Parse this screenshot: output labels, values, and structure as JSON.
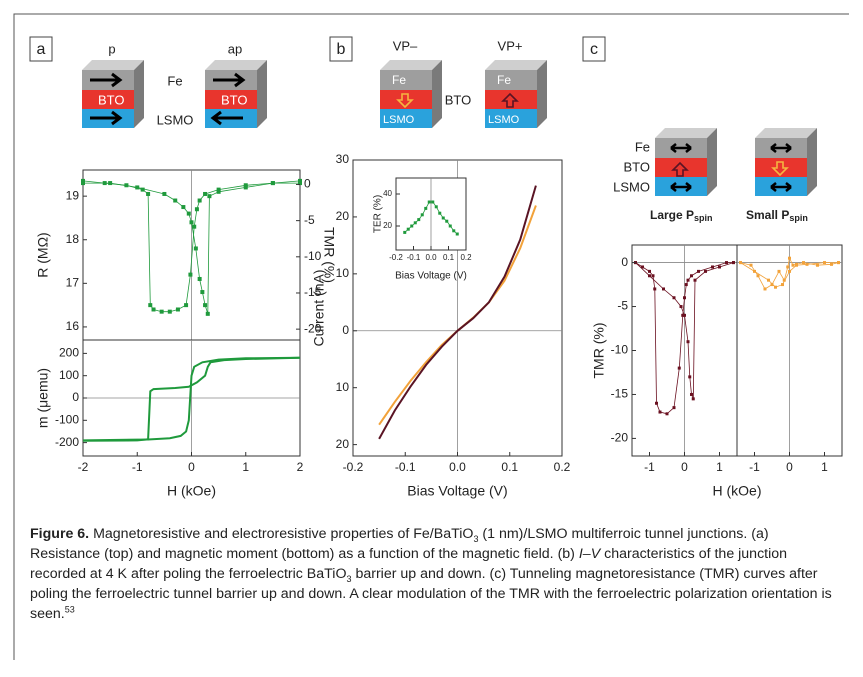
{
  "panels": [
    "a",
    "b",
    "c"
  ],
  "diagrams": {
    "a": {
      "left": "p",
      "right": "ap",
      "fe": "Fe",
      "bto_left": "BTO",
      "bto_right": "BTO",
      "lsmo": "LSMO"
    },
    "b": {
      "left": "VP–",
      "right": "VP+",
      "fe_left": "Fe",
      "fe_right": "Fe",
      "bto": "BTO",
      "lsmo_left": "LSMO",
      "lsmo_right": "LSMO"
    },
    "c": {
      "fe": "Fe",
      "bto": "BTO",
      "lsmo": "LSMO",
      "large": "Large P",
      "large_sub": "spin",
      "small": "Small P",
      "small_sub": "spin"
    }
  },
  "chart_data": [
    {
      "type": "scatter",
      "y_label": "R (MΩ)",
      "y2_label": "TMR (%)",
      "xlim": [
        -2,
        2
      ],
      "ylim": [
        15.7,
        19.6
      ],
      "yticks": [
        16,
        17,
        18,
        19
      ],
      "y2lim": [
        -21.5,
        2
      ],
      "y2ticks": [
        0,
        -5,
        -10,
        -15,
        -20
      ],
      "zero_lines": true,
      "series": [
        {
          "color": "#1f9a3c",
          "x": [
            -2,
            -1.6,
            -1.2,
            -0.9,
            -0.8,
            -0.76,
            -0.7,
            -0.55,
            -0.4,
            -0.25,
            -0.1,
            -0.02,
            0.05,
            0.1,
            0.15,
            0.25,
            0.5,
            1,
            1.5,
            2
          ],
          "values": [
            19.35,
            19.3,
            19.25,
            19.15,
            19.05,
            16.5,
            16.4,
            16.35,
            16.35,
            16.4,
            16.5,
            17.2,
            18.3,
            18.7,
            18.9,
            19.05,
            19.15,
            19.25,
            19.3,
            19.35
          ]
        },
        {
          "color": "#1f9a3c",
          "x": [
            -2,
            -1.5,
            -1,
            -0.5,
            -0.3,
            -0.15,
            -0.05,
            0,
            0.08,
            0.15,
            0.2,
            0.25,
            0.3,
            0.33,
            0.5,
            1,
            1.5,
            2
          ],
          "values": [
            19.3,
            19.3,
            19.2,
            19.05,
            18.9,
            18.75,
            18.6,
            18.4,
            17.8,
            17.1,
            16.8,
            16.5,
            16.3,
            19.0,
            19.1,
            19.2,
            19.3,
            19.3
          ]
        }
      ]
    },
    {
      "type": "line",
      "x_label": "H (kOe)",
      "y_label": "m (μemu)",
      "xlim": [
        -2,
        2
      ],
      "ylim": [
        -260,
        260
      ],
      "xticks": [
        -2,
        -1,
        0,
        1,
        2
      ],
      "yticks": [
        -200,
        -100,
        0,
        100,
        200
      ],
      "zero_lines": true,
      "series": [
        {
          "color": "#1f9a3c",
          "x": [
            -2,
            -1,
            -0.8,
            -0.76,
            -0.7,
            -0.3,
            -0.05,
            0.1,
            0.25,
            0.3,
            0.35,
            0.6,
            1,
            2
          ],
          "values": [
            -192,
            -190,
            -185,
            30,
            40,
            45,
            50,
            70,
            100,
            140,
            160,
            170,
            175,
            180
          ]
        },
        {
          "color": "#1f9a3c",
          "x": [
            2,
            1,
            0.5,
            0.2,
            0.05,
            0,
            -0.05,
            -0.1,
            -0.2,
            -0.4,
            -0.8,
            -2
          ],
          "values": [
            180,
            178,
            172,
            160,
            140,
            100,
            -100,
            -150,
            -170,
            -180,
            -186,
            -190
          ]
        }
      ]
    },
    {
      "type": "line",
      "x_label": "Bias Voltage (V)",
      "y_label": "Current (nA)",
      "xlim": [
        -0.2,
        0.2
      ],
      "ylim": [
        -22,
        30
      ],
      "xticks": [
        -0.2,
        -0.1,
        {
          "value": 0,
          "label": "0.0"
        },
        0.1,
        0.2
      ],
      "yticks": [
        30,
        20,
        10,
        0,
        {
          "value": -10,
          "label": "10"
        },
        {
          "value": -20,
          "label": "20"
        }
      ],
      "zero_lines": true,
      "series": [
        {
          "color": "#f2a23a",
          "x": [
            -0.15,
            -0.12,
            -0.09,
            -0.06,
            -0.03,
            0,
            0.03,
            0.06,
            0.09,
            0.12,
            0.15
          ],
          "values": [
            -16.5,
            -12.5,
            -8.8,
            -5.5,
            -2.5,
            0,
            2.3,
            5,
            8.8,
            14.5,
            22
          ]
        },
        {
          "color": "#5a1424",
          "x": [
            -0.15,
            -0.12,
            -0.09,
            -0.06,
            -0.03,
            0,
            0.03,
            0.06,
            0.09,
            0.12,
            0.15
          ],
          "values": [
            -19,
            -14,
            -9.8,
            -6,
            -2.8,
            0,
            2.2,
            5,
            9.5,
            16,
            25.5
          ]
        }
      ]
    },
    {
      "type": "scatter",
      "x_label": "Bias Voltage (V)",
      "y_label": "TER (%)",
      "xlim": [
        -0.2,
        0.2
      ],
      "ylim": [
        5,
        50
      ],
      "xticks": [
        -0.2,
        -0.1,
        {
          "value": 0,
          "label": "0.0"
        },
        0.1,
        0.2
      ],
      "yticks": [
        20,
        40
      ],
      "zero_lines": true,
      "series": [
        {
          "color": "#1f9a3c",
          "x": [
            -0.15,
            -0.13,
            -0.11,
            -0.09,
            -0.07,
            -0.05,
            -0.03,
            -0.01,
            0.01,
            0.03,
            0.05,
            0.07,
            0.09,
            0.11,
            0.13,
            0.15
          ],
          "values": [
            16,
            18,
            20,
            22,
            24,
            27,
            31,
            35,
            35,
            32,
            28,
            25,
            23,
            20,
            17,
            15
          ]
        }
      ]
    },
    {
      "type": "scatter",
      "x_label": "H (kOe)",
      "y_label": "TMR (%)",
      "xlim": [
        -1.5,
        1.5
      ],
      "ylim": [
        -22,
        2
      ],
      "xticks": [
        -1,
        0,
        1
      ],
      "yticks": [
        0,
        -5,
        -10,
        -15,
        -20
      ],
      "zero_lines": true,
      "series": [
        {
          "color": "#6a1020",
          "x": [
            -1.4,
            -1.2,
            -1,
            -0.9,
            -0.85,
            -0.8,
            -0.7,
            -0.5,
            -0.3,
            -0.15,
            -0.05,
            0,
            0.05,
            0.1,
            0.2,
            0.4,
            0.8,
            1.2,
            1.4
          ],
          "values": [
            0,
            -0.5,
            -1,
            -1.5,
            -3,
            -16,
            -17,
            -17.2,
            -16.5,
            -12,
            -6,
            -4,
            -2.5,
            -2,
            -1.5,
            -1,
            -0.5,
            0,
            0
          ]
        },
        {
          "color": "#6a1020",
          "x": [
            -1.4,
            -1,
            -0.6,
            -0.3,
            -0.1,
            0,
            0.1,
            0.15,
            0.2,
            0.25,
            0.3,
            0.6,
            1,
            1.4
          ],
          "values": [
            0,
            -1.5,
            -3,
            -4,
            -5,
            -6,
            -9,
            -13,
            -15,
            -15.5,
            -2,
            -1,
            -0.5,
            0
          ]
        }
      ]
    },
    {
      "type": "scatter",
      "xlim": [
        -1.5,
        1.5
      ],
      "ylim": [
        -22,
        2
      ],
      "xticks": [
        -1,
        0,
        1
      ],
      "zero_lines": true,
      "series": [
        {
          "color": "#f2a23a",
          "x": [
            -1.4,
            -1.1,
            -0.9,
            -0.7,
            -0.5,
            -0.3,
            -0.15,
            -0.05,
            0,
            0.1,
            0.2,
            0.4,
            0.8,
            1.2,
            1.4
          ],
          "values": [
            0,
            -0.3,
            -1.5,
            -3,
            -2.5,
            -1,
            -2,
            -0.5,
            0.5,
            -0.3,
            -0.2,
            0,
            -0.3,
            -0.2,
            0
          ]
        },
        {
          "color": "#f2a23a",
          "x": [
            -1.4,
            -1,
            -0.6,
            -0.4,
            -0.2,
            0,
            0.2,
            0.5,
            1,
            1.4
          ],
          "values": [
            0,
            -1,
            -2,
            -2.8,
            -2.5,
            -1,
            -0.3,
            -0.2,
            0,
            0
          ]
        }
      ]
    }
  ],
  "caption": {
    "label": "Figure 6.",
    "segments": [
      "  Magnetoresistive and electroresistive properties of Fe/BaTiO",
      "3",
      " (1 nm)/LSMO multiferroic tunnel junctions. (a) Resistance (top) and magnetic moment (bottom) as a function of the magnetic field. (b) ",
      "I–V",
      " characteristics of the junction recorded at 4 K after poling the ferroelectric BaTiO",
      "3",
      " barrier up and down. (c) Tunneling magnetoresistance (TMR) curves after poling the ferroelectric tunnel barrier up and down. A clear modulation of the TMR with the ferroelectric polarization orientation is seen.",
      "53"
    ]
  }
}
